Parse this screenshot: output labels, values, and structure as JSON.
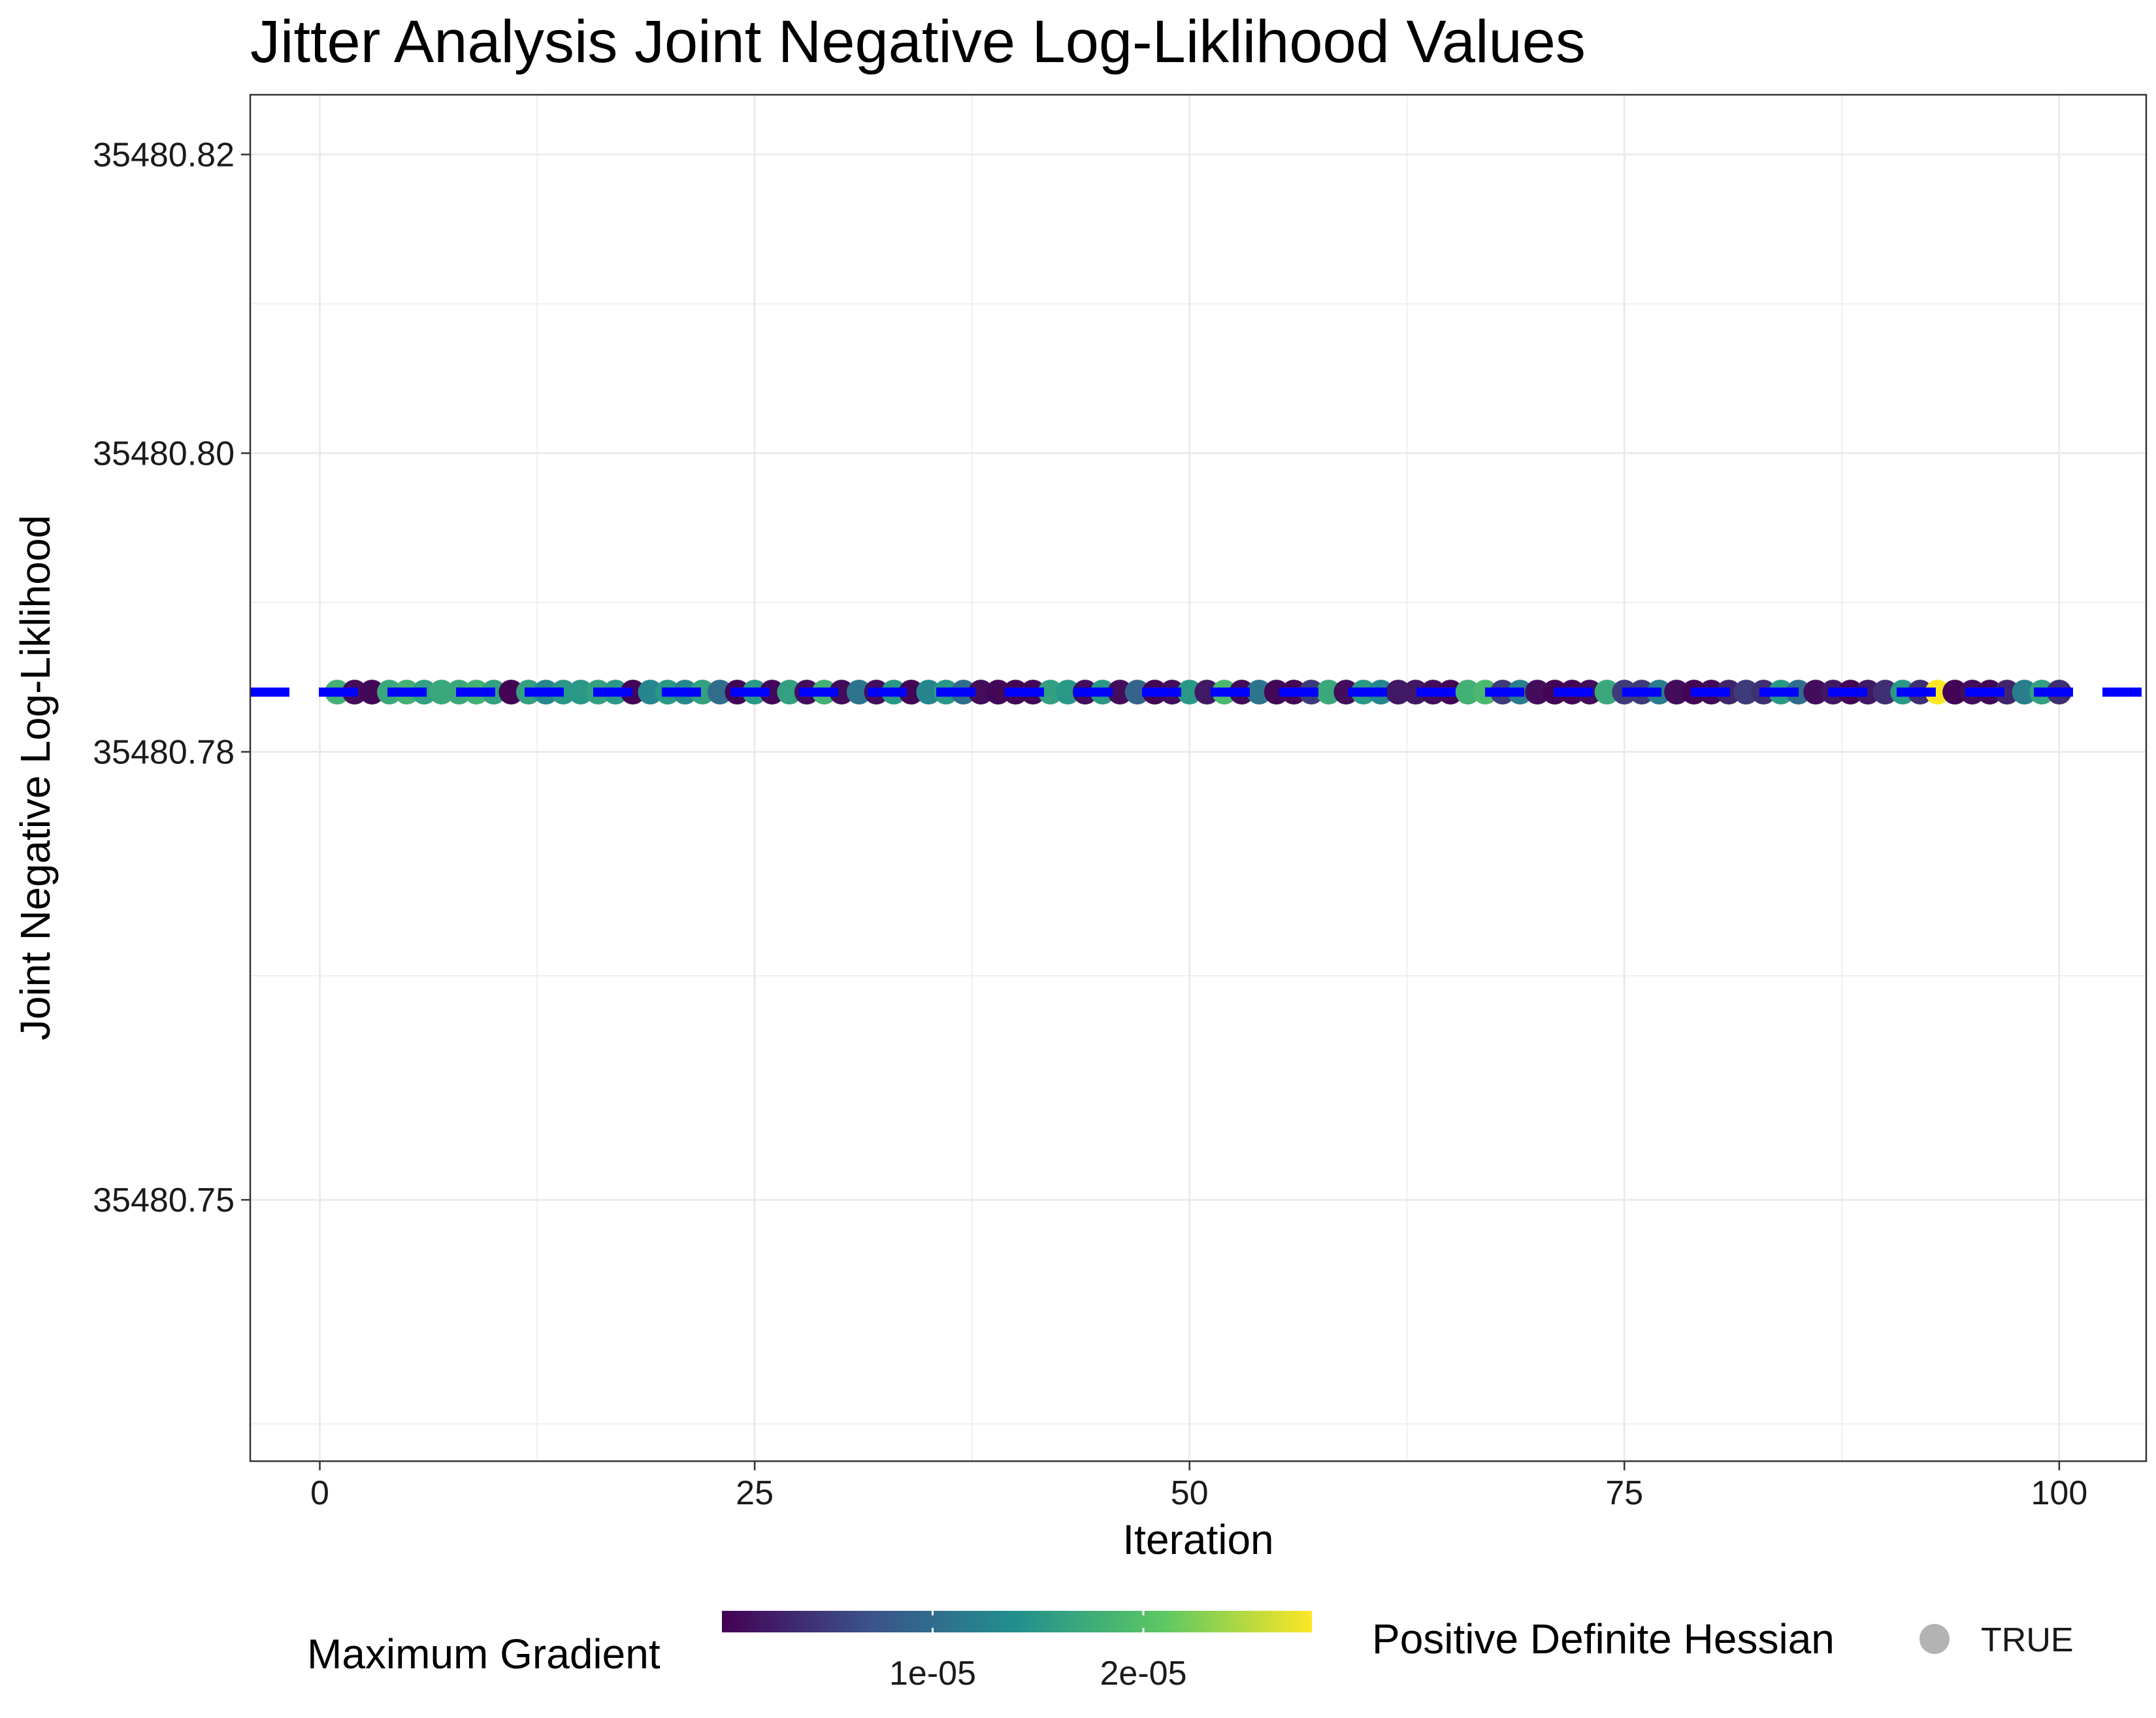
{
  "chart_data": {
    "type": "scatter",
    "title": "Jitter Analysis Joint Negative Log-Liklihood Values",
    "xlabel": "Iteration",
    "ylabel": "Joint Negative Log-Liklihood",
    "xlim": [
      -4,
      105
    ],
    "ylim": [
      35480.7325,
      35480.824
    ],
    "x_ticks": [
      0,
      25,
      50,
      75,
      100
    ],
    "x_tick_labels": [
      "0",
      "25",
      "50",
      "75",
      "100"
    ],
    "y_ticks": [
      35480.75,
      35480.78,
      35480.8,
      35480.82
    ],
    "y_tick_labels": [
      "35480.75",
      "35480.78",
      "35480.80",
      "35480.82"
    ],
    "grid": true,
    "reference_line": {
      "y": 35480.784,
      "style": "dashed",
      "color": "#0000ff"
    },
    "color_scale": {
      "title": "Maximum Gradient",
      "palette": [
        "#440154",
        "#3b528b",
        "#21908d",
        "#5dc863",
        "#fde725"
      ],
      "range": [
        0,
        2.8e-05
      ],
      "ticks": [
        1e-05,
        2e-05
      ],
      "tick_labels": [
        "1e-05",
        "2e-05"
      ]
    },
    "shape_legend": {
      "title": "Positive Definite Hessian",
      "entries": [
        "TRUE"
      ],
      "color": "#b3b3b3"
    },
    "legend_position": "bottom",
    "series": [
      {
        "x": [
          1,
          2,
          3,
          4,
          5,
          6,
          7,
          8,
          9,
          10,
          11,
          12,
          13,
          14,
          15,
          16,
          17,
          18,
          19,
          20,
          21,
          22,
          23,
          24,
          25,
          26,
          27,
          28,
          29,
          30,
          31,
          32,
          33,
          34,
          35,
          36,
          37,
          38,
          39,
          40,
          41,
          42,
          43,
          44,
          45,
          46,
          47,
          48,
          49,
          50,
          51,
          52,
          53,
          54,
          55,
          56,
          57,
          58,
          59,
          60,
          61,
          62,
          63,
          64,
          65,
          66,
          67,
          68,
          69,
          70,
          71,
          72,
          73,
          74,
          75,
          76,
          77,
          78,
          79,
          80,
          81,
          82,
          83,
          84,
          85,
          86,
          87,
          88,
          89,
          90,
          91,
          92,
          93,
          94,
          95,
          96,
          97,
          98,
          99,
          100
        ],
        "y": [
          35480.784,
          35480.784,
          35480.784,
          35480.784,
          35480.784,
          35480.784,
          35480.784,
          35480.784,
          35480.784,
          35480.784,
          35480.784,
          35480.784,
          35480.784,
          35480.784,
          35480.784,
          35480.784,
          35480.784,
          35480.784,
          35480.784,
          35480.784,
          35480.784,
          35480.784,
          35480.784,
          35480.784,
          35480.784,
          35480.784,
          35480.784,
          35480.784,
          35480.784,
          35480.784,
          35480.784,
          35480.784,
          35480.784,
          35480.784,
          35480.784,
          35480.784,
          35480.784,
          35480.784,
          35480.784,
          35480.784,
          35480.784,
          35480.784,
          35480.784,
          35480.784,
          35480.784,
          35480.784,
          35480.784,
          35480.784,
          35480.784,
          35480.784,
          35480.784,
          35480.784,
          35480.784,
          35480.784,
          35480.784,
          35480.784,
          35480.784,
          35480.784,
          35480.784,
          35480.784,
          35480.784,
          35480.784,
          35480.784,
          35480.784,
          35480.784,
          35480.784,
          35480.784,
          35480.784,
          35480.784,
          35480.784,
          35480.784,
          35480.784,
          35480.784,
          35480.784,
          35480.784,
          35480.784,
          35480.784,
          35480.784,
          35480.784,
          35480.784,
          35480.784,
          35480.784,
          35480.784,
          35480.784,
          35480.784,
          35480.784,
          35480.784,
          35480.784,
          35480.784,
          35480.784,
          35480.784,
          35480.784,
          35480.784,
          35480.784,
          35480.784,
          35480.784,
          35480.784,
          35480.784,
          35480.784,
          35480.784
        ],
        "max_gradient": [
          1.8e-05,
          1e-06,
          5e-07,
          1.7e-05,
          1.8e-05,
          1.6e-05,
          1.7e-05,
          1.7e-05,
          1.8e-05,
          1.6e-05,
          3e-07,
          1.6e-05,
          1.3e-05,
          1.5e-05,
          1.5e-05,
          1.6e-05,
          1.5e-05,
          2e-07,
          1.3e-05,
          1.5e-05,
          1.3e-05,
          1.6e-05,
          1e-05,
          4e-07,
          1.5e-05,
          6e-07,
          1.6e-05,
          1e-06,
          1.8e-05,
          1e-06,
          1.1e-05,
          1e-06,
          1.5e-05,
          4e-07,
          1.3e-05,
          1.5e-05,
          1e-05,
          1e-06,
          5e-07,
          3e-07,
          4e-07,
          1.6e-05,
          1.5e-05,
          1e-06,
          1.5e-05,
          1e-06,
          9e-06,
          3e-07,
          1e-06,
          1.5e-05,
          2e-06,
          1.9e-05,
          8e-07,
          1.1e-05,
          5e-07,
          4e-07,
          5e-06,
          1.7e-05,
          1e-06,
          1.5e-05,
          1.3e-05,
          2e-06,
          2e-06,
          1e-06,
          3e-07,
          1.8e-05,
          1.9e-05,
          5e-06,
          1.2e-05,
          1e-06,
          2e-07,
          3e-07,
          1e-06,
          1.7e-05,
          5e-06,
          5e-06,
          1.2e-05,
          1e-06,
          3e-07,
          5e-07,
          3e-06,
          5e-06,
          4e-06,
          1.5e-05,
          1e-05,
          1e-06,
          2e-06,
          3e-07,
          2e-06,
          4e-06,
          1.5e-05,
          4e-06,
          2.8e-05,
          3e-07,
          1e-06,
          5e-07,
          3e-06,
          1.2e-05,
          1.6e-05,
          4e-06
        ]
      }
    ]
  }
}
